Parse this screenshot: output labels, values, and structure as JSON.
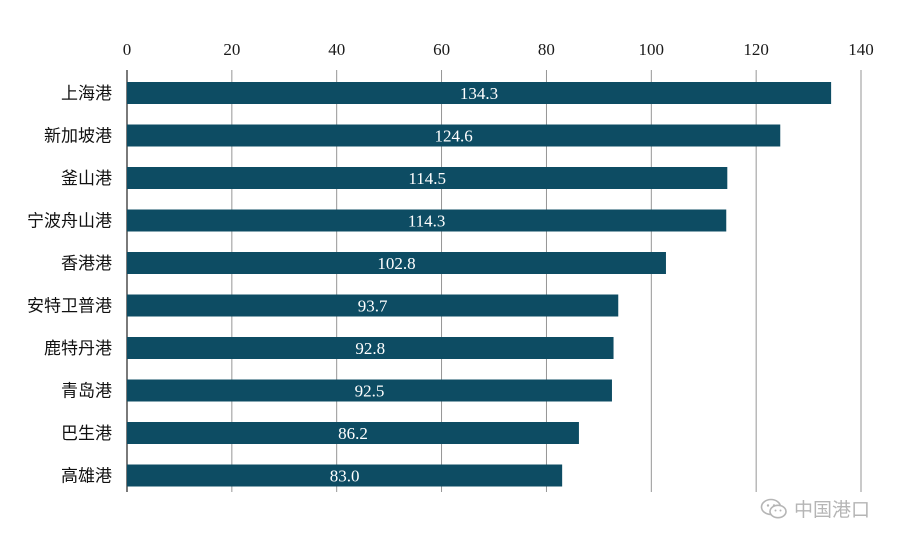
{
  "chart_data": {
    "type": "bar",
    "orientation": "horizontal",
    "categories": [
      "上海港",
      "新加坡港",
      "釜山港",
      "宁波舟山港",
      "香港港",
      "安特卫普港",
      "鹿特丹港",
      "青岛港",
      "巴生港",
      "高雄港"
    ],
    "values": [
      134.3,
      124.6,
      114.5,
      114.3,
      102.8,
      93.7,
      92.8,
      92.5,
      86.2,
      83.0
    ],
    "value_labels": [
      "134.3",
      "124.6",
      "114.5",
      "114.3",
      "102.8",
      "93.7",
      "92.8",
      "92.5",
      "86.2",
      "83.0"
    ],
    "x_ticks": [
      "0",
      "20",
      "40",
      "60",
      "80",
      "100",
      "120",
      "140"
    ],
    "xlim": [
      0,
      140
    ],
    "x_axis_position": "top",
    "grid": true,
    "bar_color": "#0d4c63",
    "title": "",
    "xlabel": "",
    "ylabel": ""
  },
  "watermark": {
    "text": "中国港口",
    "icon": "wechat-icon"
  }
}
